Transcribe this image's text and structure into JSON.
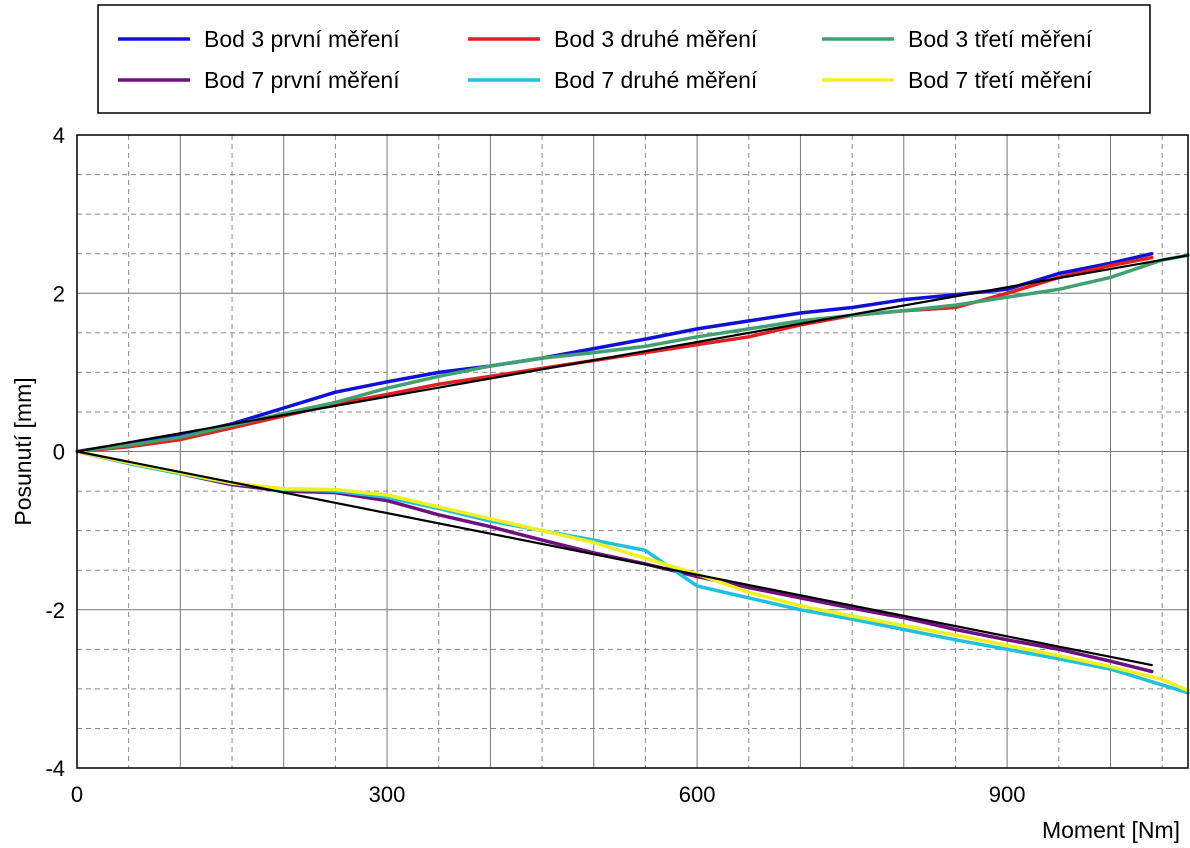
{
  "chart_data": {
    "type": "line",
    "title": "",
    "xlabel": "Moment [Nm]",
    "ylabel": "Posunutí [mm]",
    "xlim": [
      0,
      1075
    ],
    "ylim": [
      -4,
      4
    ],
    "x_ticks": [
      0,
      300,
      600,
      900
    ],
    "x_tick_labels": [
      "0",
      "300",
      "600",
      "900"
    ],
    "y_ticks": [
      -4,
      -2,
      0,
      2,
      4
    ],
    "y_tick_labels": [
      "-4",
      "-2",
      "0",
      "2",
      "4"
    ],
    "grid": true,
    "legend_position": "top",
    "series": [
      {
        "name": "Bod 3 první měření",
        "color": "#1010d8",
        "x": [
          0,
          50,
          100,
          150,
          200,
          250,
          300,
          350,
          400,
          450,
          500,
          550,
          600,
          650,
          700,
          750,
          800,
          850,
          900,
          950,
          1000,
          1040
        ],
        "y": [
          0,
          0.1,
          0.2,
          0.35,
          0.55,
          0.75,
          0.88,
          1.0,
          1.08,
          1.18,
          1.3,
          1.42,
          1.55,
          1.65,
          1.75,
          1.82,
          1.92,
          1.98,
          2.05,
          2.25,
          2.38,
          2.5
        ]
      },
      {
        "name": "Bod 3 druhé měření",
        "color": "#e02020",
        "x": [
          0,
          50,
          100,
          150,
          200,
          250,
          300,
          350,
          400,
          450,
          500,
          550,
          600,
          650,
          700,
          750,
          800,
          850,
          900,
          950,
          1000,
          1040
        ],
        "y": [
          0,
          0.06,
          0.15,
          0.3,
          0.45,
          0.6,
          0.72,
          0.85,
          0.95,
          1.05,
          1.15,
          1.25,
          1.35,
          1.45,
          1.6,
          1.72,
          1.78,
          1.82,
          2.0,
          2.2,
          2.35,
          2.45
        ]
      },
      {
        "name": "Bod 3 třetí měření",
        "color": "#40a070",
        "x": [
          0,
          50,
          100,
          150,
          200,
          250,
          300,
          350,
          400,
          450,
          500,
          550,
          600,
          650,
          700,
          750,
          800,
          850,
          900,
          950,
          1000,
          1050,
          1075
        ],
        "y": [
          0,
          0.08,
          0.18,
          0.33,
          0.48,
          0.62,
          0.8,
          0.95,
          1.08,
          1.18,
          1.25,
          1.33,
          1.45,
          1.55,
          1.65,
          1.72,
          1.78,
          1.85,
          1.95,
          2.05,
          2.2,
          2.42,
          2.48
        ]
      },
      {
        "name": "Bod 7 první měření",
        "color": "#701080",
        "x": [
          0,
          50,
          100,
          150,
          200,
          250,
          300,
          350,
          400,
          450,
          500,
          550,
          600,
          650,
          700,
          750,
          800,
          850,
          900,
          950,
          1000,
          1040
        ],
        "y": [
          0,
          -0.15,
          -0.28,
          -0.42,
          -0.5,
          -0.52,
          -0.62,
          -0.8,
          -0.95,
          -1.12,
          -1.28,
          -1.42,
          -1.58,
          -1.72,
          -1.85,
          -1.98,
          -2.1,
          -2.25,
          -2.38,
          -2.5,
          -2.65,
          -2.78
        ]
      },
      {
        "name": "Bod 7 druhé měření",
        "color": "#20c0e0",
        "x": [
          0,
          50,
          100,
          150,
          200,
          250,
          300,
          350,
          400,
          450,
          500,
          550,
          600,
          650,
          700,
          750,
          800,
          850,
          900,
          950,
          1000,
          1050,
          1075
        ],
        "y": [
          0,
          -0.15,
          -0.28,
          -0.4,
          -0.48,
          -0.5,
          -0.58,
          -0.72,
          -0.88,
          -1.0,
          -1.12,
          -1.25,
          -1.7,
          -1.85,
          -2.0,
          -2.12,
          -2.25,
          -2.38,
          -2.5,
          -2.62,
          -2.75,
          -2.95,
          -3.05
        ]
      },
      {
        "name": "Bod 7 třetí měření",
        "color": "#f0f020",
        "x": [
          0,
          50,
          100,
          150,
          200,
          250,
          300,
          350,
          400,
          450,
          500,
          550,
          600,
          650,
          700,
          750,
          800,
          850,
          900,
          950,
          1000,
          1050,
          1075
        ],
        "y": [
          0,
          -0.14,
          -0.27,
          -0.4,
          -0.47,
          -0.48,
          -0.55,
          -0.7,
          -0.85,
          -1.0,
          -1.15,
          -1.35,
          -1.55,
          -1.78,
          -1.95,
          -2.08,
          -2.2,
          -2.32,
          -2.45,
          -2.58,
          -2.72,
          -2.88,
          -3.02
        ]
      },
      {
        "color": "#000000",
        "x": [
          0,
          1075
        ],
        "y": [
          0,
          2.48
        ]
      },
      {
        "color": "#000000",
        "x": [
          0,
          1040
        ],
        "y": [
          0,
          -2.7
        ]
      }
    ]
  }
}
